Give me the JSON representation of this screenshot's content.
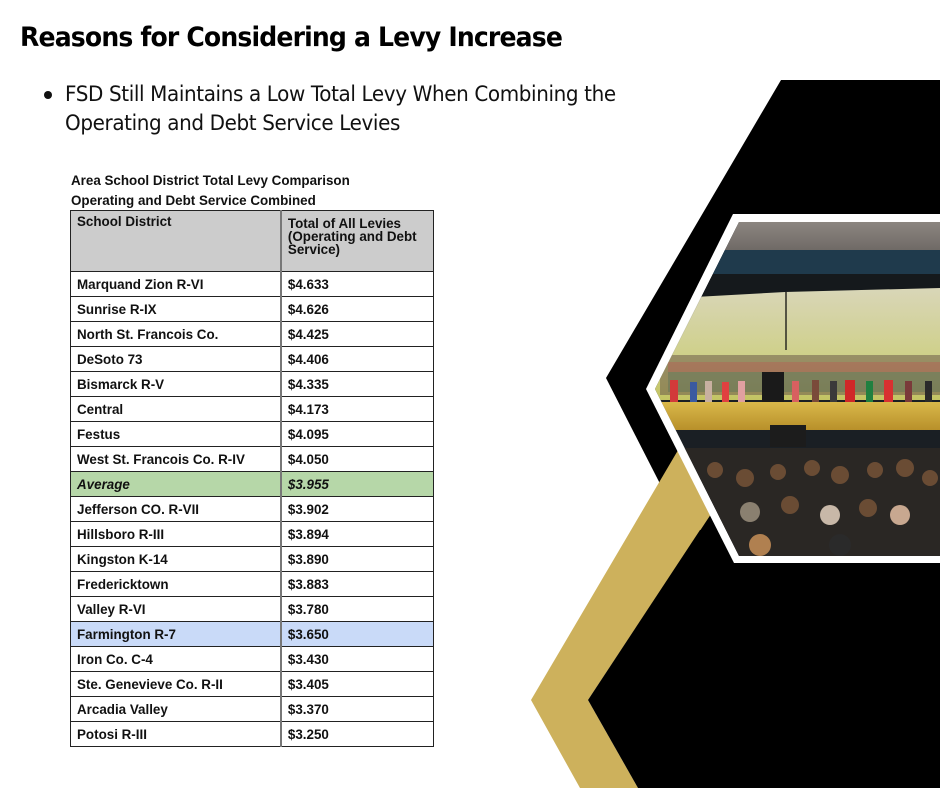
{
  "slide": {
    "title": "Reasons for Considering a Levy Increase",
    "bullets": [
      "FSD Still Maintains a Low Total Levy When Combining the Operating and Debt Service Levies"
    ]
  },
  "table": {
    "caption_line1": "Area School District Total Levy Comparison",
    "caption_line2": "Operating and Debt Service Combined",
    "headers": [
      "School District",
      "Total of All Levies (Operating and Debt Service)"
    ],
    "rows": [
      {
        "district": "Marquand Zion R-VI",
        "levy": "$4.633"
      },
      {
        "district": "Sunrise R-IX",
        "levy": "$4.626"
      },
      {
        "district": "North St. Francois Co.",
        "levy": "$4.425"
      },
      {
        "district": "DeSoto 73",
        "levy": "$4.406"
      },
      {
        "district": "Bismarck R-V",
        "levy": "$4.335"
      },
      {
        "district": "Central",
        "levy": "$4.173"
      },
      {
        "district": "Festus",
        "levy": "$4.095"
      },
      {
        "district": "West St. Francois Co. R-IV",
        "levy": "$4.050"
      },
      {
        "district": "Average",
        "levy": "$3.955",
        "highlight": "average"
      },
      {
        "district": "Jefferson CO. R-VII",
        "levy": "$3.902"
      },
      {
        "district": "Hillsboro R-III",
        "levy": "$3.894"
      },
      {
        "district": "Kingston K-14",
        "levy": "$3.890"
      },
      {
        "district": "Fredericktown",
        "levy": "$3.883"
      },
      {
        "district": "Valley R-VI",
        "levy": "$3.780"
      },
      {
        "district": "Farmington R-7",
        "levy": "$3.650",
        "highlight": "fsd"
      },
      {
        "district": "Iron Co. C-4",
        "levy": "$3.430"
      },
      {
        "district": "Ste. Genevieve Co. R-II",
        "levy": "$3.405"
      },
      {
        "district": "Arcadia Valley",
        "levy": "$3.370"
      },
      {
        "district": "Potosi R-III",
        "levy": "$3.250"
      }
    ],
    "colors": {
      "header_bg": "#cccccc",
      "average_bg": "#b6d7a8",
      "fsd_bg": "#c9daf8"
    }
  },
  "decor": {
    "photo_subject": "elementary school choir concert on stage with audience",
    "colors": {
      "black": "#000000",
      "gold": "#cdb15c",
      "border": "#ffffff"
    }
  }
}
